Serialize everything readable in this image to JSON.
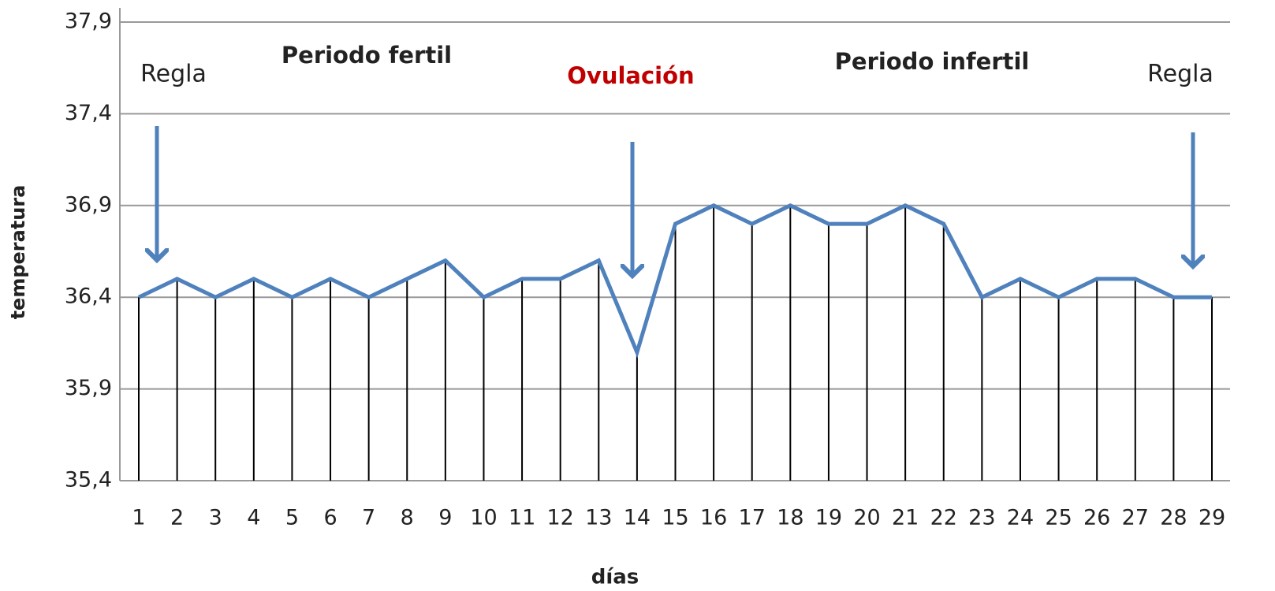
{
  "chart_data": {
    "type": "line",
    "x_label": "días",
    "y_label": "temperatura",
    "annotations": [
      "Regla",
      "Periodo fertil",
      "Ovulación",
      "Periodo infertil",
      "Regla"
    ],
    "categories": [
      "1",
      "2",
      "3",
      "4",
      "5",
      "6",
      "7",
      "8",
      "9",
      "10",
      "11",
      "12",
      "13",
      "14",
      "15",
      "16",
      "17",
      "18",
      "19",
      "20",
      "21",
      "22",
      "23",
      "24",
      "25",
      "26",
      "27",
      "28",
      "29"
    ],
    "series": [
      {
        "color": "#4f81bd",
        "values": [
          36.4,
          36.5,
          36.4,
          36.5,
          36.4,
          36.5,
          36.4,
          36.5,
          36.6,
          36.4,
          36.5,
          36.5,
          36.6,
          36.1,
          36.8,
          36.9,
          36.8,
          36.9,
          36.8,
          36.8,
          36.9,
          36.8,
          36.4,
          36.5,
          36.4,
          36.5,
          36.5,
          36.4,
          36.4
        ]
      }
    ],
    "ylim": [
      35.4,
      37.9
    ],
    "yticks": [
      {
        "value": 35.4,
        "label": "35,4"
      },
      {
        "value": 35.9,
        "label": "35,9"
      },
      {
        "value": 36.4,
        "label": "36,4"
      },
      {
        "value": 36.9,
        "label": "36,9"
      },
      {
        "value": 37.4,
        "label": "37,4"
      },
      {
        "value": 37.9,
        "label": "37,9"
      }
    ],
    "grid": true,
    "drop_lines": true
  }
}
